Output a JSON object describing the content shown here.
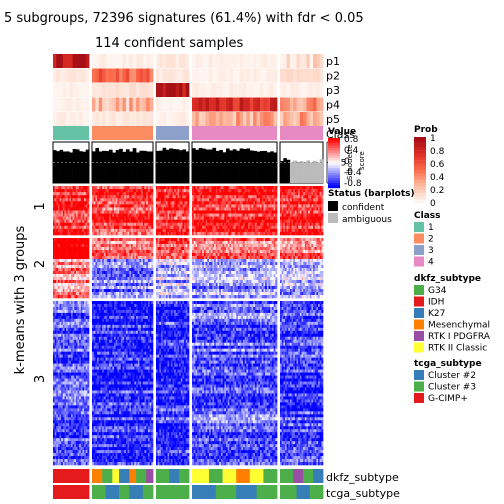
{
  "title": "5 subgroups, 72396 signatures (61.4%) with fdr < 0.05",
  "subtitle": "114 confident samples",
  "colors": {
    "prob": [
      "#fff5f0",
      "#fcbba1",
      "#fb6a4a",
      "#de2d26",
      "#a50f15"
    ],
    "class": {
      "1": "#66c2a5",
      "2": "#fc8d62",
      "3": "#8da0cb",
      "4": "#e78ac3"
    },
    "status": {
      "confident": "#000000",
      "ambiguous": "#bbbbbb"
    },
    "dkfz_subtype": {
      "G34": "#4daf4a",
      "IDH": "#e41a1c",
      "K27": "#377eb8",
      "Mesenchymal": "#ff7f00",
      "RTK I PDGFRA": "#984ea3",
      "RTK II Classic": "#ffff33"
    },
    "tcga_subtype": {
      "Cluster #2": "#377eb8",
      "Cluster #3": "#4daf4a",
      "G-CIMP+": "#e41a1c"
    },
    "heat_high": "#ff0000",
    "heat_mid": "#ffffff",
    "heat_low": "#0000ff"
  },
  "chart_data": {
    "type": "heatmap",
    "title": "5 subgroups, 72396 signatures (61.4%) with fdr < 0.05",
    "subtitle": "114 confident samples",
    "ylabel": "k-means with 3 groups",
    "row_groups": [
      "1",
      "2",
      "3"
    ],
    "column_groups": [
      {
        "class": "1",
        "dkfz_subtype": "IDH",
        "tcga_subtype": "G-CIMP+"
      },
      {
        "class": "2",
        "dkfz_subtype": "Mesenchymal",
        "tcga_subtype": "Cluster #3"
      },
      {
        "class": "3",
        "dkfz_subtype": "G34",
        "tcga_subtype": "Cluster #3"
      },
      {
        "class": "4",
        "dkfz_subtype": "RTK II Classic",
        "tcga_subtype": "Cluster #2"
      },
      {
        "class": "4",
        "dkfz_subtype": "G34",
        "tcga_subtype": "Cluster #3"
      }
    ],
    "prob_rows": [
      "p1",
      "p2",
      "p3",
      "p4",
      "p5"
    ],
    "annotation_rows": [
      "dkfz_subtype",
      "tcga_subtype"
    ],
    "silhouette_axis_label": "Silhouette score",
    "silhouette_ticks": [
      "0",
      "0.5",
      "1"
    ],
    "value_legend": {
      "title": "Value",
      "ticks": [
        "0.8",
        "0.4",
        "0",
        "-0.4",
        "-0.8"
      ],
      "range": [
        -0.8,
        0.8
      ]
    },
    "prob_legend": {
      "title": "Prob",
      "ticks": [
        "1",
        "0.8",
        "0.6",
        "0.4",
        "0.2",
        "0"
      ],
      "range": [
        0,
        1
      ]
    }
  },
  "legends": {
    "status": {
      "title": "Status (barplots)",
      "items": [
        "confident",
        "ambiguous"
      ]
    },
    "class": {
      "title": "Class",
      "items": [
        "1",
        "2",
        "3",
        "4"
      ]
    },
    "dkfz_subtype": {
      "title": "dkfz_subtype",
      "items": [
        "G34",
        "IDH",
        "K27",
        "Mesenchymal",
        "RTK I PDGFRA",
        "RTK II Classic"
      ]
    },
    "tcga_subtype": {
      "title": "tcga_subtype",
      "items": [
        "Cluster #2",
        "Cluster #3",
        "G-CIMP+"
      ]
    }
  },
  "labels": {
    "class_row": "Class",
    "silhouette": "Silhouette",
    "score": "score",
    "dkfz_row": "dkfz_subtype",
    "tcga_row": "tcga_subtype"
  }
}
